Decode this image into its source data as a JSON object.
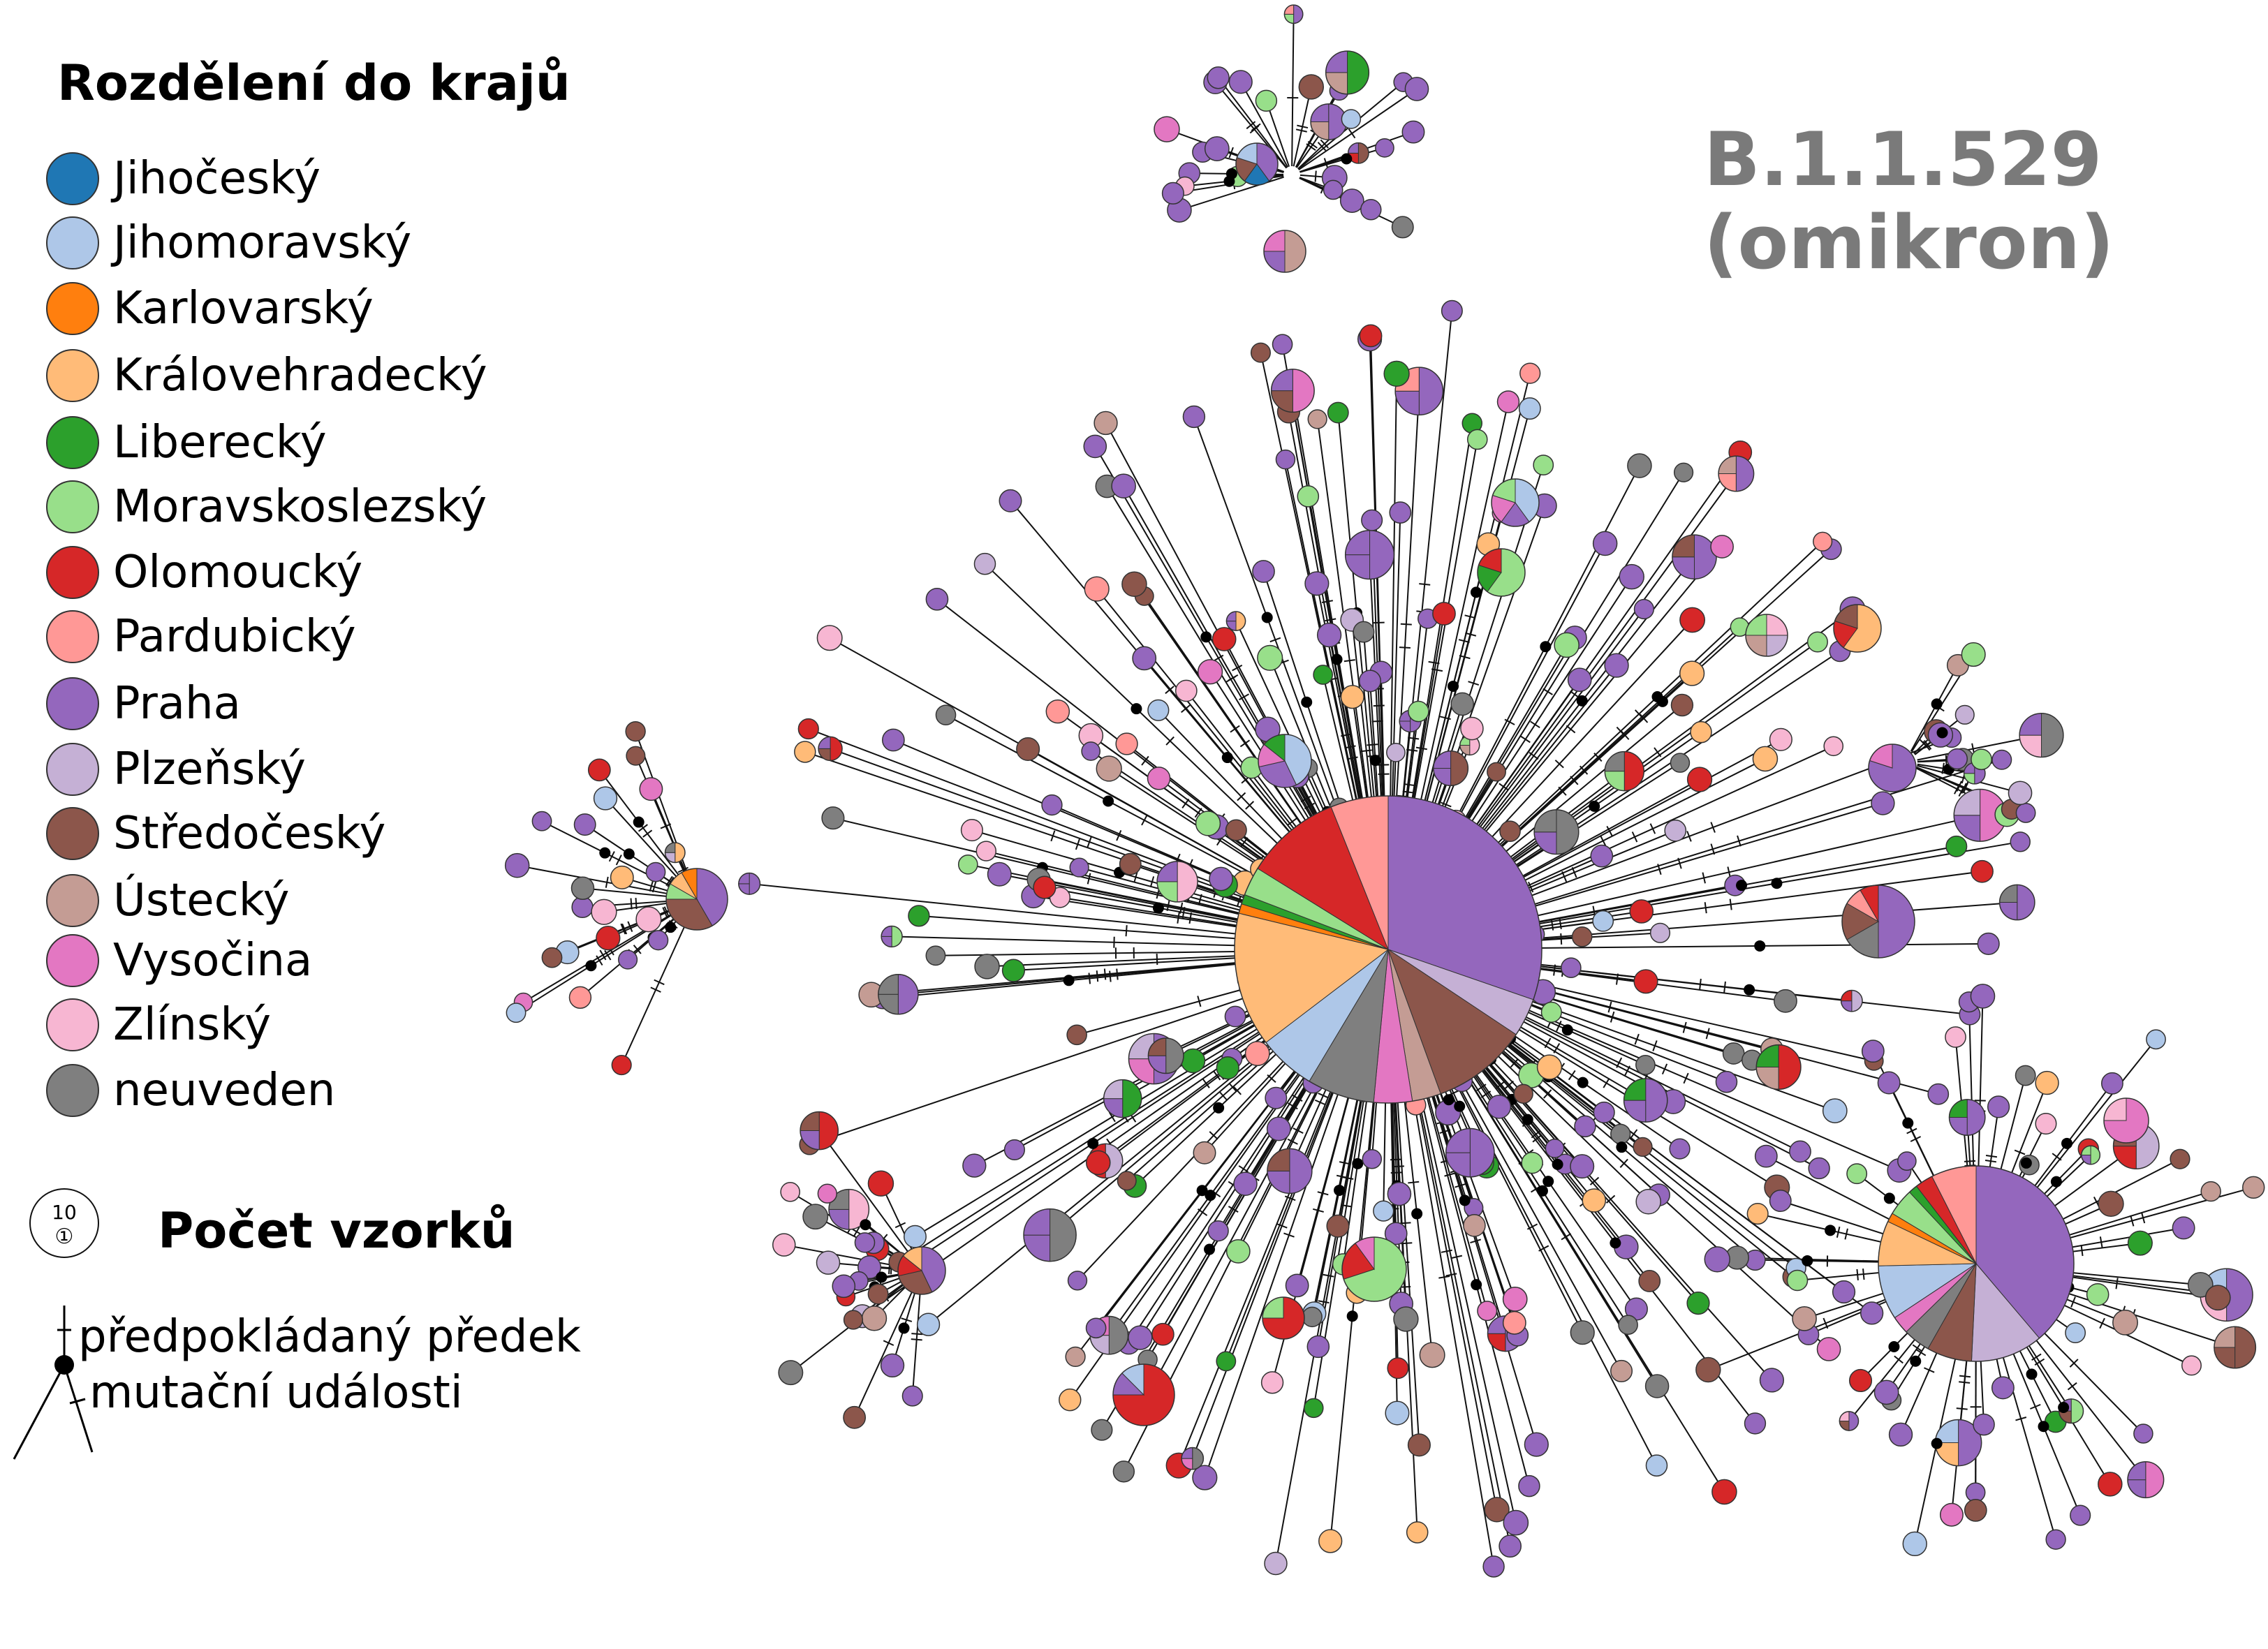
{
  "legend": {
    "title": "Rozdělení do krajů",
    "regions": [
      {
        "label": "Jihočeský",
        "color": "#1f77b4"
      },
      {
        "label": "Jihomoravský",
        "color": "#aec7e8"
      },
      {
        "label": "Karlovarský",
        "color": "#ff7f0e"
      },
      {
        "label": "Královehradecký",
        "color": "#ffbb78"
      },
      {
        "label": "Liberecký",
        "color": "#2ca02c"
      },
      {
        "label": "Moravskoslezský",
        "color": "#98df8a"
      },
      {
        "label": "Olomoucký",
        "color": "#d62728"
      },
      {
        "label": "Pardubický",
        "color": "#ff9896"
      },
      {
        "label": "Praha",
        "color": "#9467bd"
      },
      {
        "label": "Plzeňský",
        "color": "#c5b0d5"
      },
      {
        "label": "Středočeský",
        "color": "#8c564b"
      },
      {
        "label": "Ústecký",
        "color": "#c49c94"
      },
      {
        "label": "Vysočina",
        "color": "#e377c2"
      },
      {
        "label": "Zlínský",
        "color": "#f7b6d2"
      },
      {
        "label": "neuveden",
        "color": "#7f7f7f"
      }
    ]
  },
  "variant": {
    "line1": "B.1.1.529",
    "line2": "(omikron)"
  },
  "size_legend": {
    "title": "Počet vzorků",
    "ten": "10",
    "one": "①"
  },
  "ancestor_legend": {
    "ancestor": "předpokládaný předek",
    "mutation": "mutační události"
  }
}
